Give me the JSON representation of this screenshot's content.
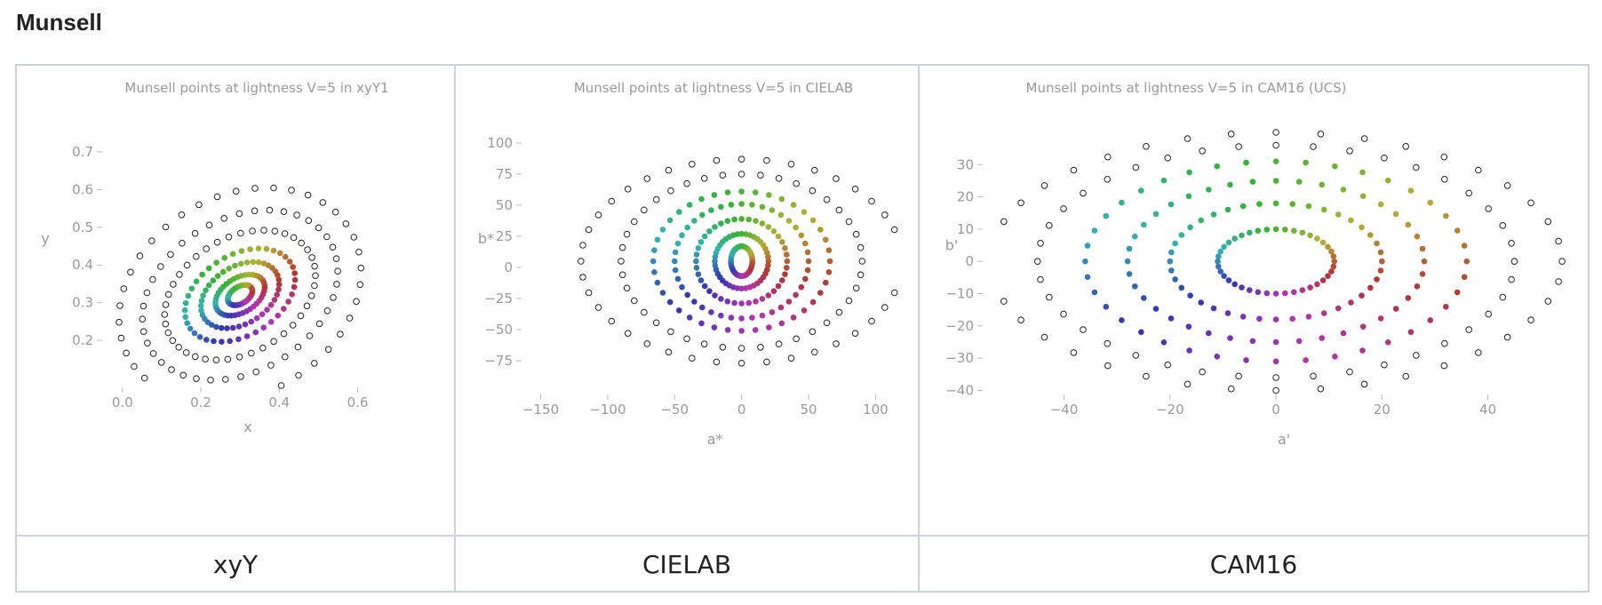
{
  "page": {
    "title": "Munsell"
  },
  "captions": [
    "xyY",
    "CIELAB",
    "CAM16"
  ],
  "colors": {
    "border": "#cdd3de",
    "ring_stroke": "#222222",
    "tick_text": "#999999"
  },
  "chart_data": [
    {
      "type": "scatter",
      "title": "Munsell points at lightness V=5 in xyY1",
      "xlabel": "x",
      "ylabel": "y",
      "xlim": [
        -0.02,
        0.66
      ],
      "ylim": [
        0.08,
        0.74
      ],
      "xticks": [
        0.0,
        0.2,
        0.4,
        0.6
      ],
      "xtick_labels": [
        "0.0",
        "0.2",
        "0.4",
        "0.6"
      ],
      "yticks": [
        0.2,
        0.3,
        0.4,
        0.5,
        0.6,
        0.7
      ],
      "ytick_labels": [
        "0.2",
        "0.3",
        "0.4",
        "0.5",
        "0.6",
        "0.7"
      ],
      "center": [
        0.3,
        0.32
      ],
      "rings": [
        {
          "filled": true,
          "rx": 0.035,
          "ry": 0.022,
          "rot": 35
        },
        {
          "filled": true,
          "rx": 0.07,
          "ry": 0.045,
          "rot": 35
        },
        {
          "filled": true,
          "rx": 0.11,
          "ry": 0.075,
          "rot": 35
        },
        {
          "filled": true,
          "rx": 0.155,
          "ry": 0.105,
          "rot": 35
        },
        {
          "filled": false,
          "rx": 0.21,
          "ry": 0.15,
          "rot": 35
        },
        {
          "filled": false,
          "rx": 0.27,
          "ry": 0.2,
          "rot": 35
        },
        {
          "filled": false,
          "rx": 0.33,
          "ry": 0.26,
          "rot": 35
        }
      ]
    },
    {
      "type": "scatter",
      "title": "Munsell points at lightness V=5 in CIELAB",
      "xlabel": "a*",
      "ylabel": "b*",
      "xlim": [
        -155,
        115
      ],
      "ylim": [
        -95,
        105
      ],
      "xticks": [
        -150,
        -100,
        -50,
        0,
        50,
        100
      ],
      "xtick_labels": [
        "−150",
        "−100",
        "−50",
        "0",
        "50",
        "100"
      ],
      "yticks": [
        -75,
        -50,
        -25,
        0,
        25,
        50,
        75,
        100
      ],
      "ytick_labels": [
        "−75",
        "−50",
        "−25",
        "0",
        "25",
        "50",
        "75",
        "100"
      ],
      "center": [
        0,
        5
      ],
      "rings": [
        {
          "filled": true,
          "rx": 8,
          "ry": 12,
          "rot": 0
        },
        {
          "filled": true,
          "rx": 20,
          "ry": 22,
          "rot": 0
        },
        {
          "filled": true,
          "rx": 34,
          "ry": 34,
          "rot": 0
        },
        {
          "filled": true,
          "rx": 50,
          "ry": 46,
          "rot": 0
        },
        {
          "filled": true,
          "rx": 66,
          "ry": 56,
          "rot": 0
        },
        {
          "filled": false,
          "rx": 90,
          "ry": 70,
          "rot": 0
        },
        {
          "filled": false,
          "rx": 120,
          "ry": 82,
          "rot": 0
        }
      ]
    },
    {
      "type": "scatter",
      "title": "Munsell points at lightness V=5 in CAM16 (UCS)",
      "xlabel": "a'",
      "ylabel": "b'",
      "xlim": [
        -53,
        56
      ],
      "ylim": [
        -44,
        40
      ],
      "xticks": [
        -40,
        -20,
        0,
        20,
        40
      ],
      "xtick_labels": [
        "−40",
        "−20",
        "0",
        "20",
        "40"
      ],
      "yticks": [
        -40,
        -30,
        -20,
        -10,
        0,
        10,
        20,
        30
      ],
      "ytick_labels": [
        "−40",
        "−30",
        "−20",
        "−10",
        "0",
        "10",
        "20",
        "30"
      ],
      "center": [
        0,
        0
      ],
      "rings": [
        {
          "filled": true,
          "rx": 11,
          "ry": 10,
          "rot": 0
        },
        {
          "filled": true,
          "rx": 20,
          "ry": 18,
          "rot": 0
        },
        {
          "filled": true,
          "rx": 28,
          "ry": 25,
          "rot": 0
        },
        {
          "filled": true,
          "rx": 36,
          "ry": 31,
          "rot": 0
        },
        {
          "filled": false,
          "rx": 45,
          "ry": 36,
          "rot": 0
        },
        {
          "filled": false,
          "rx": 54,
          "ry": 40,
          "rot": 0
        }
      ]
    }
  ]
}
